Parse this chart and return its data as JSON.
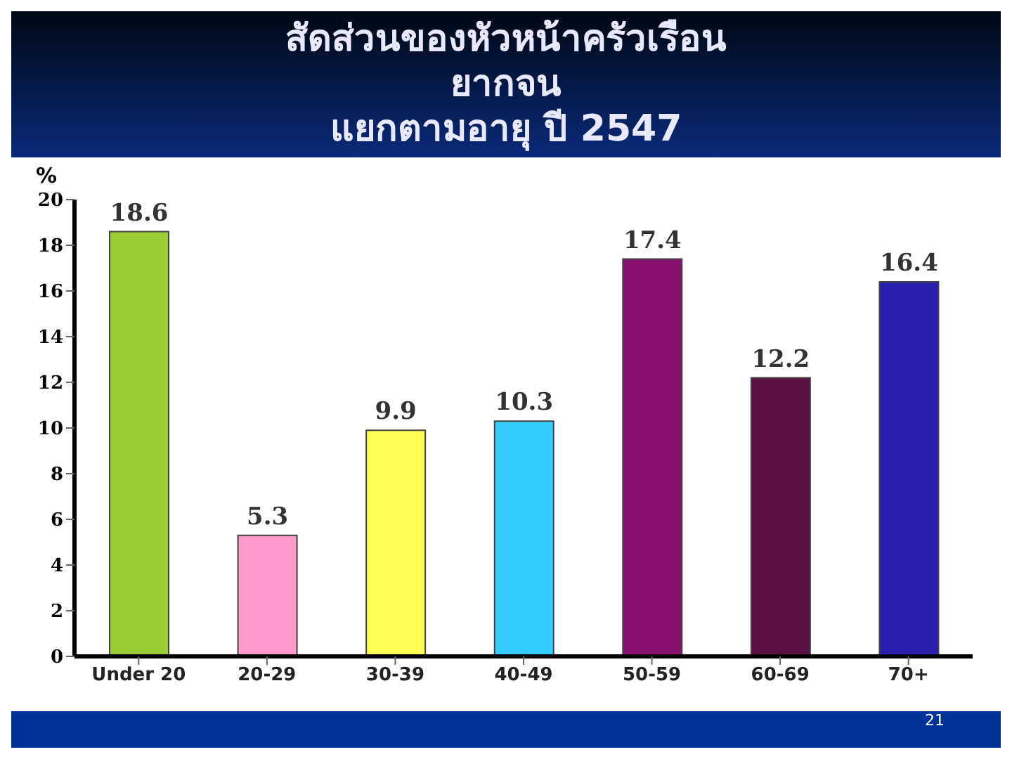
{
  "chart_data": {
    "type": "bar",
    "title": "สัดส่วนของหัวหน้าครัวเรือน\nยากจน\nแยกตามอายุ ปี 2547",
    "ylabel": "%",
    "categories": [
      "Under 20",
      "20-29",
      "30-39",
      "40-49",
      "50-59",
      "60-69",
      "70+"
    ],
    "values": [
      18.6,
      5.3,
      9.9,
      10.3,
      17.4,
      12.2,
      16.4
    ],
    "colors": [
      "#9acd32",
      "#ff99cc",
      "#ffff55",
      "#33ccff",
      "#8a1070",
      "#5a1040",
      "#2a20b0"
    ],
    "ylim": [
      0,
      20
    ],
    "yticks": [
      0,
      2,
      4,
      6,
      8,
      10,
      12,
      14,
      16,
      18,
      20
    ],
    "grid": false,
    "legend": false,
    "data_labels": true,
    "annotations": [
      "21"
    ]
  }
}
